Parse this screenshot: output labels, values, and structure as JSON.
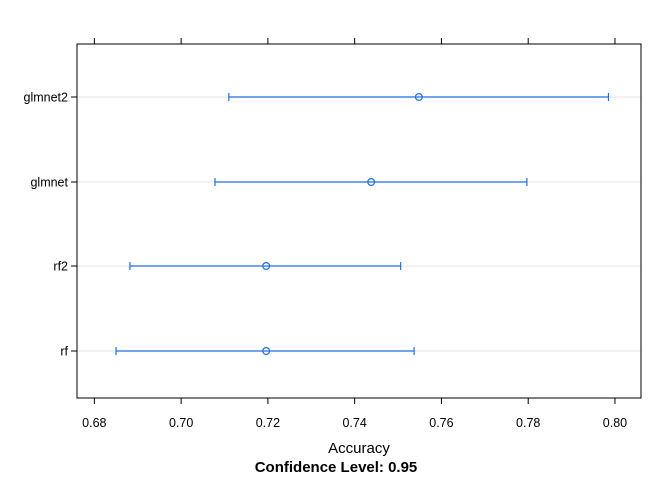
{
  "chart_data": {
    "type": "dotplot-interval",
    "xlabel": "Accuracy",
    "subtitle": "Confidence Level: 0.95",
    "xlim": [
      0.676,
      0.806
    ],
    "x_ticks": [
      0.68,
      0.7,
      0.72,
      0.74,
      0.76,
      0.78,
      0.8
    ],
    "x_tick_labels": [
      "0.68",
      "0.70",
      "0.72",
      "0.74",
      "0.76",
      "0.78",
      "0.80"
    ],
    "grid": true,
    "categories": [
      "glmnet2",
      "glmnet",
      "rf2",
      "rf"
    ],
    "estimates": [
      0.7548,
      0.7438,
      0.7196,
      0.7196
    ],
    "lower": [
      0.711,
      0.7078,
      0.6882,
      0.685
    ],
    "upper": [
      0.7985,
      0.7797,
      0.7506,
      0.7537
    ],
    "colors": {
      "interval": "#1f6fe0",
      "grid": "#e6e6e6",
      "frame": "#000000"
    }
  }
}
